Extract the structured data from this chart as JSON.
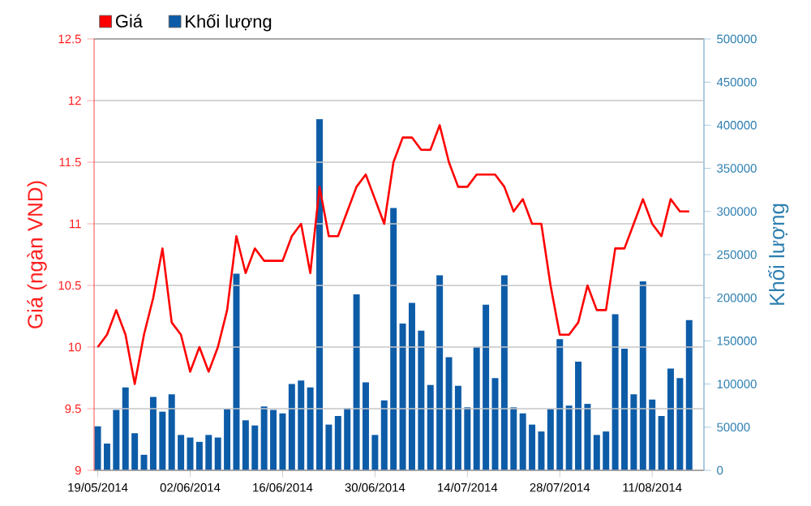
{
  "chart_data": {
    "type": "bar",
    "categories": [
      "19/05/2014",
      null,
      null,
      null,
      null,
      null,
      null,
      null,
      null,
      null,
      "02/06/2014",
      null,
      null,
      null,
      null,
      null,
      null,
      null,
      null,
      null,
      "16/06/2014",
      null,
      null,
      null,
      null,
      null,
      null,
      null,
      null,
      null,
      "30/06/2014",
      null,
      null,
      null,
      null,
      null,
      null,
      null,
      null,
      null,
      "14/07/2014",
      null,
      null,
      null,
      null,
      null,
      null,
      null,
      null,
      null,
      "28/07/2014",
      null,
      null,
      null,
      null,
      null,
      null,
      null,
      null,
      null,
      "11/08/2014",
      null,
      null,
      null,
      null
    ],
    "ylabel": "Giá (ngàn VND)",
    "y2label": "Khối lượng",
    "ylim": [
      9,
      12.5
    ],
    "yticks": [
      9,
      9.5,
      10,
      10.5,
      11,
      11.5,
      12,
      12.5
    ],
    "y2lim": [
      0,
      500000
    ],
    "y2ticks": [
      0,
      50000,
      100000,
      150000,
      200000,
      250000,
      300000,
      350000,
      400000,
      450000,
      500000
    ],
    "grid": "y",
    "legend": "top left",
    "series": [
      {
        "name": "Giá",
        "type": "line",
        "color": "#ff0000",
        "values": [
          10.0,
          10.1,
          10.3,
          10.1,
          9.7,
          10.1,
          10.4,
          10.8,
          10.2,
          10.1,
          9.8,
          10.0,
          9.8,
          10.0,
          10.3,
          10.9,
          10.6,
          10.8,
          10.7,
          10.7,
          10.7,
          10.9,
          11.0,
          10.6,
          11.3,
          10.9,
          10.9,
          11.1,
          11.3,
          11.4,
          11.2,
          11.0,
          11.5,
          11.7,
          11.7,
          11.6,
          11.6,
          11.8,
          11.5,
          11.3,
          11.3,
          11.4,
          11.4,
          11.4,
          11.3,
          11.1,
          11.2,
          11.0,
          11.0,
          10.5,
          10.1,
          10.1,
          10.2,
          10.5,
          10.3,
          10.3,
          10.8,
          10.8,
          11.0,
          11.2,
          11.0,
          10.9,
          11.2,
          11.1,
          11.1
        ]
      },
      {
        "name": "Khối lượng",
        "axis": "y2",
        "color": "#0d5ca8",
        "values": [
          51000,
          31000,
          70000,
          96000,
          43000,
          18000,
          85000,
          68000,
          88000,
          41000,
          38000,
          33000,
          41000,
          38000,
          71000,
          228000,
          58000,
          52000,
          74000,
          70000,
          66000,
          100000,
          104000,
          96000,
          407000,
          53000,
          63000,
          72000,
          204000,
          102000,
          41000,
          81000,
          304000,
          170000,
          194000,
          162000,
          99000,
          226000,
          131000,
          98000,
          73000,
          143000,
          192000,
          107000,
          226000,
          73000,
          66000,
          53000,
          45000,
          71000,
          152000,
          75000,
          126000,
          77000,
          41000,
          45000,
          181000,
          141000,
          88000,
          219000,
          82000,
          63000,
          118000,
          107000,
          174000
        ]
      }
    ]
  }
}
